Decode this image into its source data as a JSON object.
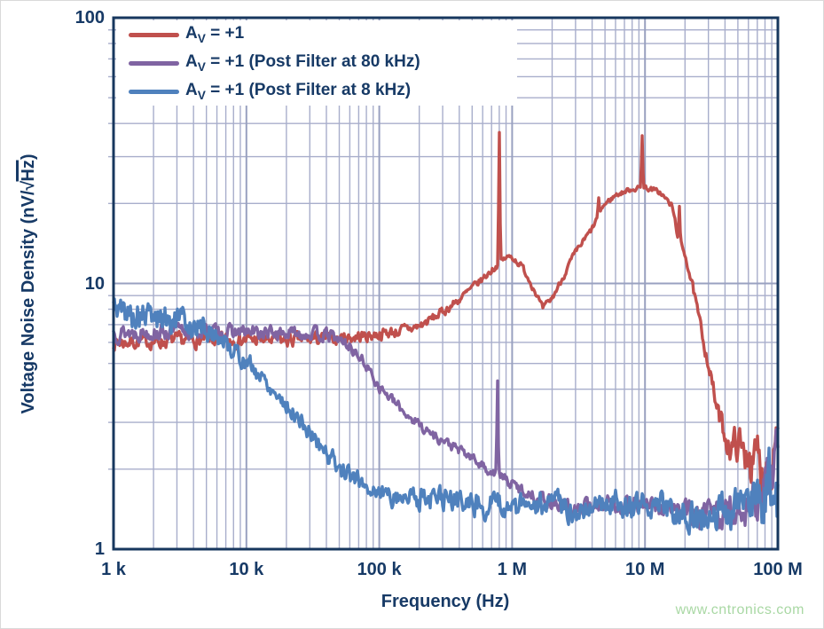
{
  "watermark": "www.cntronics.com",
  "chart_data": {
    "type": "line",
    "title": "",
    "xlabel": "Frequency (Hz)",
    "ylabel_pre": "Voltage Noise Density (nV/√",
    "ylabel_overline": "Hz",
    "ylabel_post": ")",
    "x_scale": "log",
    "y_scale": "log",
    "x_range_hz": [
      1000,
      100000000
    ],
    "y_range": [
      1,
      100
    ],
    "x_log_range": [
      3,
      8
    ],
    "y_log_range": [
      0,
      2
    ],
    "x_ticks": [
      {
        "label": "1 k",
        "log": 3
      },
      {
        "label": "10 k",
        "log": 4
      },
      {
        "label": "100 k",
        "log": 5
      },
      {
        "label": "1 M",
        "log": 6
      },
      {
        "label": "10 M",
        "log": 7
      },
      {
        "label": "100 M",
        "log": 8
      }
    ],
    "y_ticks": [
      {
        "label": "1",
        "log": 0
      },
      {
        "label": "10",
        "log": 1
      },
      {
        "label": "100",
        "log": 2
      }
    ],
    "grid": "log-log with minor gridlines",
    "legend_position": "top-left",
    "colors": {
      "frame": "#17375e",
      "text": "#173a66",
      "grid_major": "#99a1c0",
      "grid_minor": "#a8aecb",
      "background": "#ffffff",
      "watermark": "#a9d8a4"
    },
    "series": [
      {
        "name": "av1",
        "legend_a": "A",
        "legend_sub": "V",
        "legend_rest": " = +1",
        "color": "#c0504d",
        "seed": 7,
        "keypoints": [
          [
            1000,
            6.0,
            0.022
          ],
          [
            2000,
            6.05,
            0.022
          ],
          [
            4000,
            6.1,
            0.022
          ],
          [
            10000,
            6.15,
            0.022
          ],
          [
            20000,
            6.1,
            0.022
          ],
          [
            40000,
            6.2,
            0.02
          ],
          [
            70000,
            6.3,
            0.02
          ],
          [
            100000,
            6.45,
            0.018
          ],
          [
            150000,
            6.65,
            0.018
          ],
          [
            200000,
            6.9,
            0.016
          ],
          [
            300000,
            7.8,
            0.014
          ],
          [
            400000,
            8.7,
            0.013
          ],
          [
            500000,
            9.6,
            0.012
          ],
          [
            600000,
            10.4,
            0.012
          ],
          [
            700000,
            11.2,
            0.011
          ],
          [
            800000,
            11.9,
            0.01
          ],
          [
            900000,
            12.5,
            0.01
          ],
          [
            1000000,
            12.6,
            0.01
          ],
          [
            1200000,
            11.5,
            0.01
          ],
          [
            1500000,
            9.3,
            0.01
          ],
          [
            1700000,
            8.0,
            0.01
          ],
          [
            2000000,
            8.8,
            0.01
          ],
          [
            2400000,
            10.5,
            0.01
          ],
          [
            2800000,
            12.3,
            0.01
          ],
          [
            3300000,
            14,
            0.01
          ],
          [
            4000000,
            16,
            0.01
          ],
          [
            4800000,
            19.5,
            0.009
          ],
          [
            6000000,
            21.5,
            0.008
          ],
          [
            8000000,
            22.7,
            0.008
          ],
          [
            10000000,
            23,
            0.008
          ],
          [
            13000000,
            22,
            0.009
          ],
          [
            16000000,
            19.5,
            0.01
          ],
          [
            18000000,
            14.5,
            0.012
          ],
          [
            20000000,
            13,
            0.012
          ],
          [
            22500000,
            10,
            0.015
          ],
          [
            26000000,
            7,
            0.018
          ],
          [
            30000000,
            5,
            0.022
          ],
          [
            35000000,
            3.3,
            0.03
          ],
          [
            40000000,
            2.7,
            0.04
          ],
          [
            45000000,
            2.35,
            0.05
          ],
          [
            50000000,
            2.6,
            0.06
          ],
          [
            55000000,
            2.2,
            0.07
          ],
          [
            60000000,
            2.5,
            0.075
          ],
          [
            65000000,
            1.95,
            0.08
          ],
          [
            70000000,
            2.3,
            0.08
          ],
          [
            75000000,
            1.85,
            0.085
          ],
          [
            80000000,
            2.2,
            0.085
          ],
          [
            85000000,
            1.9,
            0.09
          ],
          [
            90000000,
            2.2,
            0.09
          ],
          [
            96000000,
            3.0,
            0.08
          ],
          [
            100000000,
            2.6,
            0.08
          ]
        ],
        "spikes": [
          [
            800000,
            37
          ],
          [
            4500000,
            21
          ],
          [
            9500000,
            36
          ],
          [
            18200000,
            19.5
          ]
        ]
      },
      {
        "name": "av1-post-filter-80khz",
        "legend_a": "A",
        "legend_sub": "V",
        "legend_rest": " = +1 (Post Filter at 80 kHz)",
        "color": "#8064a2",
        "seed": 13,
        "keypoints": [
          [
            1000,
            6.55,
            0.026
          ],
          [
            3000,
            6.6,
            0.024
          ],
          [
            8000,
            6.55,
            0.022
          ],
          [
            15000,
            6.5,
            0.022
          ],
          [
            30000,
            6.5,
            0.02
          ],
          [
            45000,
            6.3,
            0.02
          ],
          [
            60000,
            5.8,
            0.018
          ],
          [
            80000,
            4.9,
            0.016
          ],
          [
            100000,
            4.1,
            0.016
          ],
          [
            130000,
            3.55,
            0.016
          ],
          [
            170000,
            3.15,
            0.016
          ],
          [
            250000,
            2.7,
            0.016
          ],
          [
            350000,
            2.45,
            0.016
          ],
          [
            500000,
            2.2,
            0.016
          ],
          [
            650000,
            2.0,
            0.016
          ],
          [
            800000,
            1.9,
            0.016
          ],
          [
            1000000,
            1.75,
            0.018
          ],
          [
            1300000,
            1.63,
            0.02
          ],
          [
            1700000,
            1.55,
            0.022
          ],
          [
            2500000,
            1.45,
            0.028
          ],
          [
            3000000,
            1.38,
            0.028
          ],
          [
            4000000,
            1.48,
            0.028
          ],
          [
            6000000,
            1.48,
            0.028
          ],
          [
            10000000,
            1.45,
            0.03
          ],
          [
            15000000,
            1.42,
            0.032
          ],
          [
            20000000,
            1.38,
            0.035
          ],
          [
            25000000,
            1.3,
            0.04
          ],
          [
            30000000,
            1.35,
            0.045
          ],
          [
            40000000,
            1.35,
            0.05
          ],
          [
            55000000,
            1.45,
            0.06
          ],
          [
            70000000,
            1.55,
            0.07
          ],
          [
            85000000,
            1.8,
            0.08
          ],
          [
            93000000,
            2.05,
            0.08
          ],
          [
            100000000,
            2.35,
            0.08
          ]
        ],
        "spikes": [
          [
            780000,
            4.3
          ]
        ]
      },
      {
        "name": "av1-post-filter-8khz",
        "legend_a": "A",
        "legend_sub": "V",
        "legend_rest": " = +1 (Post Filter at 8 kHz)",
        "color": "#4f81bd",
        "seed": 5,
        "keypoints": [
          [
            1000,
            8.2,
            0.04
          ],
          [
            1300,
            7.7,
            0.045
          ],
          [
            1800,
            7.5,
            0.045
          ],
          [
            2500,
            7.4,
            0.045
          ],
          [
            3500,
            7.15,
            0.042
          ],
          [
            5000,
            6.7,
            0.038
          ],
          [
            6500,
            6.2,
            0.034
          ],
          [
            8000,
            5.6,
            0.03
          ],
          [
            10000,
            5.05,
            0.028
          ],
          [
            14000,
            4.3,
            0.028
          ],
          [
            20000,
            3.5,
            0.028
          ],
          [
            28000,
            2.85,
            0.028
          ],
          [
            40000,
            2.3,
            0.028
          ],
          [
            55000,
            1.95,
            0.028
          ],
          [
            80000,
            1.72,
            0.03
          ],
          [
            120000,
            1.6,
            0.032
          ],
          [
            200000,
            1.57,
            0.036
          ],
          [
            350000,
            1.52,
            0.038
          ],
          [
            600000,
            1.48,
            0.038
          ],
          [
            1000000,
            1.44,
            0.038
          ],
          [
            2000000,
            1.47,
            0.04
          ],
          [
            3000000,
            1.38,
            0.04
          ],
          [
            4000000,
            1.5,
            0.04
          ],
          [
            6000000,
            1.5,
            0.04
          ],
          [
            8000000,
            1.45,
            0.042
          ],
          [
            12000000,
            1.48,
            0.042
          ],
          [
            16000000,
            1.44,
            0.045
          ],
          [
            20000000,
            1.38,
            0.045
          ],
          [
            25000000,
            1.27,
            0.05
          ],
          [
            30000000,
            1.35,
            0.05
          ],
          [
            40000000,
            1.38,
            0.055
          ],
          [
            50000000,
            1.45,
            0.06
          ],
          [
            60000000,
            1.5,
            0.065
          ],
          [
            70000000,
            1.45,
            0.08
          ],
          [
            80000000,
            1.5,
            0.1
          ],
          [
            86000000,
            1.9,
            0.1
          ],
          [
            89000000,
            1.25,
            0.11
          ],
          [
            92000000,
            1.35,
            0.12
          ],
          [
            96000000,
            1.7,
            0.12
          ],
          [
            100000000,
            1.6,
            0.12
          ]
        ],
        "spikes": [
          [
            86000000,
            2.4
          ]
        ]
      }
    ]
  }
}
